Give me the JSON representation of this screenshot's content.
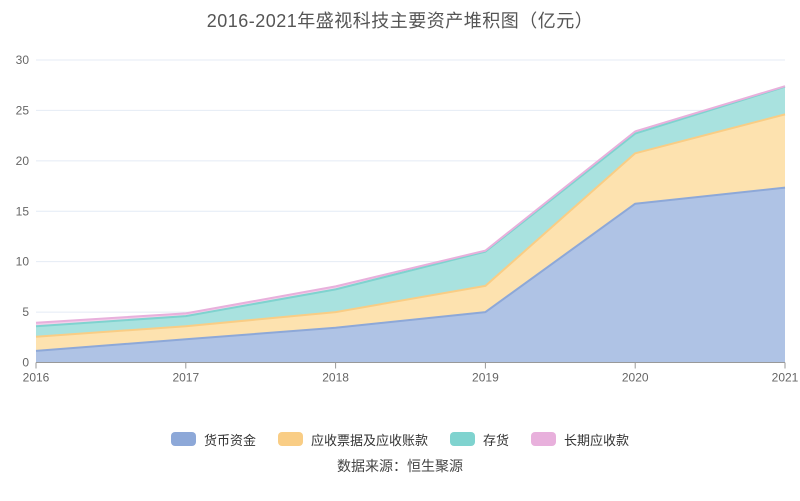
{
  "title": "2016-2021年盛视科技主要资产堆积图（亿元）",
  "source": "数据来源：恒生聚源",
  "colors": {
    "grid": "#e4ebf5",
    "axis": "#999999",
    "tick_label": "#666666",
    "title": "#555555",
    "legend_text": "#333333",
    "background": "#ffffff"
  },
  "chart_data": {
    "type": "area",
    "stacked": true,
    "title": "2016-2021年盛视科技主要资产堆积图（亿元）",
    "x": [
      2016,
      2017,
      2018,
      2019,
      2020,
      2021
    ],
    "series": [
      {
        "name": "货币资金",
        "color": "#8da8d8",
        "fill": "#afc3e5",
        "values": [
          1.15,
          2.3,
          3.45,
          5.0,
          15.75,
          17.35
        ]
      },
      {
        "name": "应收票据及应收账款",
        "color": "#f9cd85",
        "fill": "#fde2af",
        "values": [
          1.4,
          1.3,
          1.55,
          2.6,
          5.0,
          7.25
        ]
      },
      {
        "name": "存货",
        "color": "#7fd3cf",
        "fill": "#a9e2df",
        "values": [
          1.05,
          1.0,
          2.25,
          3.4,
          1.95,
          2.75
        ]
      },
      {
        "name": "长期应收款",
        "color": "#e8b0dc",
        "fill": "#f3cfea",
        "values": [
          0.35,
          0.27,
          0.3,
          0.1,
          0.22,
          0.05
        ]
      }
    ],
    "ylim": [
      0,
      30
    ],
    "yticks": [
      0,
      5,
      10,
      15,
      20,
      25,
      30
    ],
    "xlabel": "",
    "ylabel": "",
    "grid": true,
    "legend_position": "bottom",
    "unit": "亿元"
  }
}
